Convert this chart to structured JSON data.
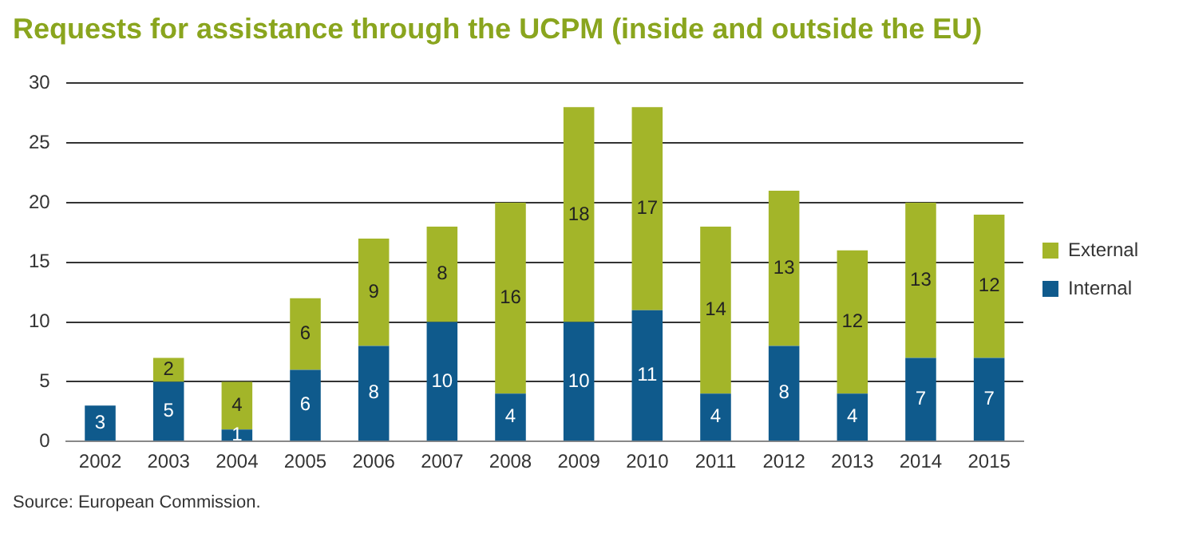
{
  "chart_data": {
    "type": "bar",
    "title": "Requests for assistance through the UCPM (inside and outside the EU)",
    "categories": [
      "2002",
      "2003",
      "2004",
      "2005",
      "2006",
      "2007",
      "2008",
      "2009",
      "2010",
      "2011",
      "2012",
      "2013",
      "2014",
      "2015"
    ],
    "series": [
      {
        "name": "Internal",
        "color": "#0f5a8c",
        "values": [
          3,
          5,
          1,
          6,
          8,
          10,
          4,
          10,
          11,
          4,
          8,
          4,
          7,
          7
        ]
      },
      {
        "name": "External",
        "color": "#a3b529",
        "values": [
          null,
          2,
          4,
          6,
          9,
          8,
          16,
          18,
          17,
          14,
          13,
          12,
          13,
          12
        ]
      }
    ],
    "stacked": true,
    "ylim": [
      0,
      30
    ],
    "yticks": [
      0,
      5,
      10,
      15,
      20,
      25,
      30
    ],
    "grid": "y",
    "legend": "right",
    "data_labels": true,
    "annotations": [
      "Source: European Commission."
    ]
  }
}
